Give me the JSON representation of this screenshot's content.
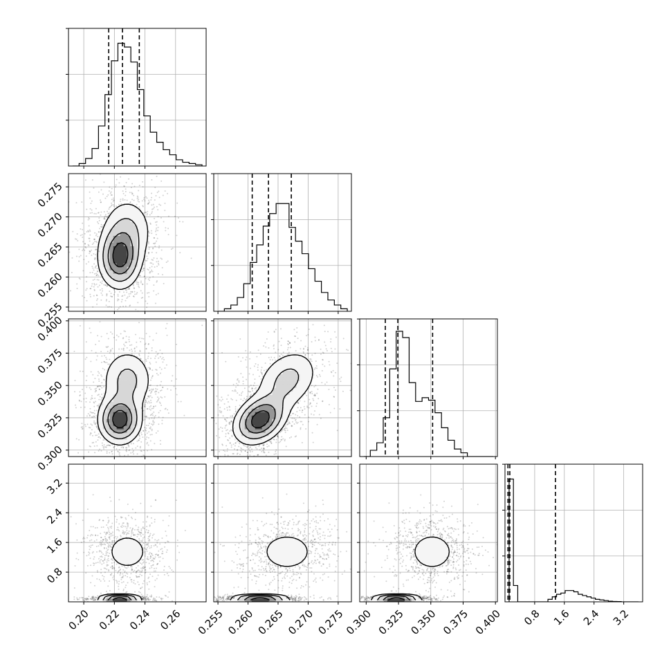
{
  "chart_data": {
    "type": "corner",
    "n_params": 4,
    "grid": true,
    "colors": {
      "line": "#000000",
      "grid": "#b0b0b0",
      "scatter": "#000000",
      "background": "#ffffff"
    },
    "axes": [
      {
        "range": [
          0.19,
          0.28
        ],
        "ticks": [
          0.2,
          0.22,
          0.24,
          0.26
        ],
        "tick_labels": [
          "0.20",
          "0.22",
          "0.24",
          "0.26"
        ]
      },
      {
        "range": [
          0.2543,
          0.2772
        ],
        "ticks": [
          0.255,
          0.26,
          0.265,
          0.27,
          0.275
        ],
        "tick_labels": [
          "0.255",
          "0.260",
          "0.265",
          "0.270",
          "0.275"
        ]
      },
      {
        "range": [
          0.295,
          0.4015
        ],
        "ticks": [
          0.3,
          0.325,
          0.35,
          0.375,
          0.4
        ],
        "tick_labels": [
          "0.300",
          "0.325",
          "0.350",
          "0.375",
          "0.400"
        ]
      },
      {
        "range": [
          0.0,
          3.71
        ],
        "ticks": [
          0.8,
          1.6,
          2.4,
          3.2
        ],
        "tick_labels": [
          "0.8",
          "1.6",
          "2.4",
          "3.2"
        ]
      }
    ],
    "quantiles": [
      [
        0.2163,
        0.2253,
        0.2363
      ],
      [
        0.2607,
        0.2634,
        0.2672
      ],
      [
        0.3148,
        0.3245,
        0.3514
      ],
      [
        0.08,
        0.13,
        1.36
      ]
    ],
    "histograms": [
      [
        0,
        0.02,
        0.06,
        0.14,
        0.32,
        0.57,
        0.84,
        0.98,
        0.95,
        0.83,
        0.61,
        0.4,
        0.27,
        0.19,
        0.13,
        0.09,
        0.05,
        0.03,
        0.02,
        0.01
      ],
      [
        0,
        0.02,
        0.05,
        0.11,
        0.22,
        0.39,
        0.53,
        0.68,
        0.78,
        0.86,
        0.86,
        0.67,
        0.56,
        0.46,
        0.34,
        0.24,
        0.15,
        0.09,
        0.05,
        0.02
      ],
      [
        0,
        0.05,
        0.11,
        0.31,
        0.7,
        1.0,
        0.95,
        0.59,
        0.44,
        0.47,
        0.45,
        0.35,
        0.23,
        0.13,
        0.06,
        0.03,
        0,
        0,
        0,
        0
      ],
      [
        0.98,
        0.13,
        0,
        0,
        0,
        0,
        0,
        0,
        0,
        0.02,
        0.04,
        0.06,
        0.07,
        0.09,
        0.09,
        0.08,
        0.06,
        0.05,
        0.04,
        0.03,
        0.02,
        0.015,
        0.01,
        0.005,
        0.003,
        0.002,
        0,
        0,
        0,
        0
      ]
    ],
    "density_modes": [
      {
        "x_param": 0,
        "y_param": 1,
        "modes": [
          {
            "mx": 0.2235,
            "my": 0.2632,
            "sx": 0.007,
            "sy": 0.0026,
            "w": 0.65,
            "rho": 0
          },
          {
            "mx": 0.2285,
            "my": 0.2678,
            "sx": 0.009,
            "sy": 0.003,
            "w": 0.35,
            "rho": 0
          }
        ]
      },
      {
        "x_param": 0,
        "y_param": 2,
        "modes": [
          {
            "mx": 0.2235,
            "my": 0.3235,
            "sx": 0.007,
            "sy": 0.0095,
            "w": 0.6,
            "rho": 0
          },
          {
            "mx": 0.2285,
            "my": 0.354,
            "sx": 0.009,
            "sy": 0.013,
            "w": 0.4,
            "rho": 0
          }
        ]
      },
      {
        "x_param": 1,
        "y_param": 2,
        "modes": [
          {
            "mx": 0.262,
            "my": 0.3235,
            "sx": 0.0022,
            "sy": 0.0095,
            "w": 0.6,
            "rho": 0.3
          },
          {
            "mx": 0.2665,
            "my": 0.354,
            "sx": 0.0028,
            "sy": 0.013,
            "w": 0.4,
            "rho": 0.3
          }
        ]
      },
      {
        "x_param": 0,
        "y_param": 3,
        "modes": [
          {
            "mx": 0.2235,
            "my": 0.09,
            "sx": 0.007,
            "sy": 0.028,
            "w": 0.5,
            "rho": 0
          },
          {
            "mx": 0.2285,
            "my": 1.35,
            "sx": 0.009,
            "sy": 0.33,
            "w": 0.5,
            "rho": 0
          }
        ]
      },
      {
        "x_param": 1,
        "y_param": 3,
        "modes": [
          {
            "mx": 0.262,
            "my": 0.09,
            "sx": 0.0024,
            "sy": 0.028,
            "w": 0.5,
            "rho": 0
          },
          {
            "mx": 0.2665,
            "my": 1.35,
            "sx": 0.0028,
            "sy": 0.33,
            "w": 0.5,
            "rho": 0
          }
        ]
      },
      {
        "x_param": 2,
        "y_param": 3,
        "modes": [
          {
            "mx": 0.3235,
            "my": 0.09,
            "sx": 0.0095,
            "sy": 0.028,
            "w": 0.5,
            "rho": 0
          },
          {
            "mx": 0.351,
            "my": 1.35,
            "sx": 0.011,
            "sy": 0.33,
            "w": 0.5,
            "rho": 0
          }
        ]
      }
    ]
  }
}
